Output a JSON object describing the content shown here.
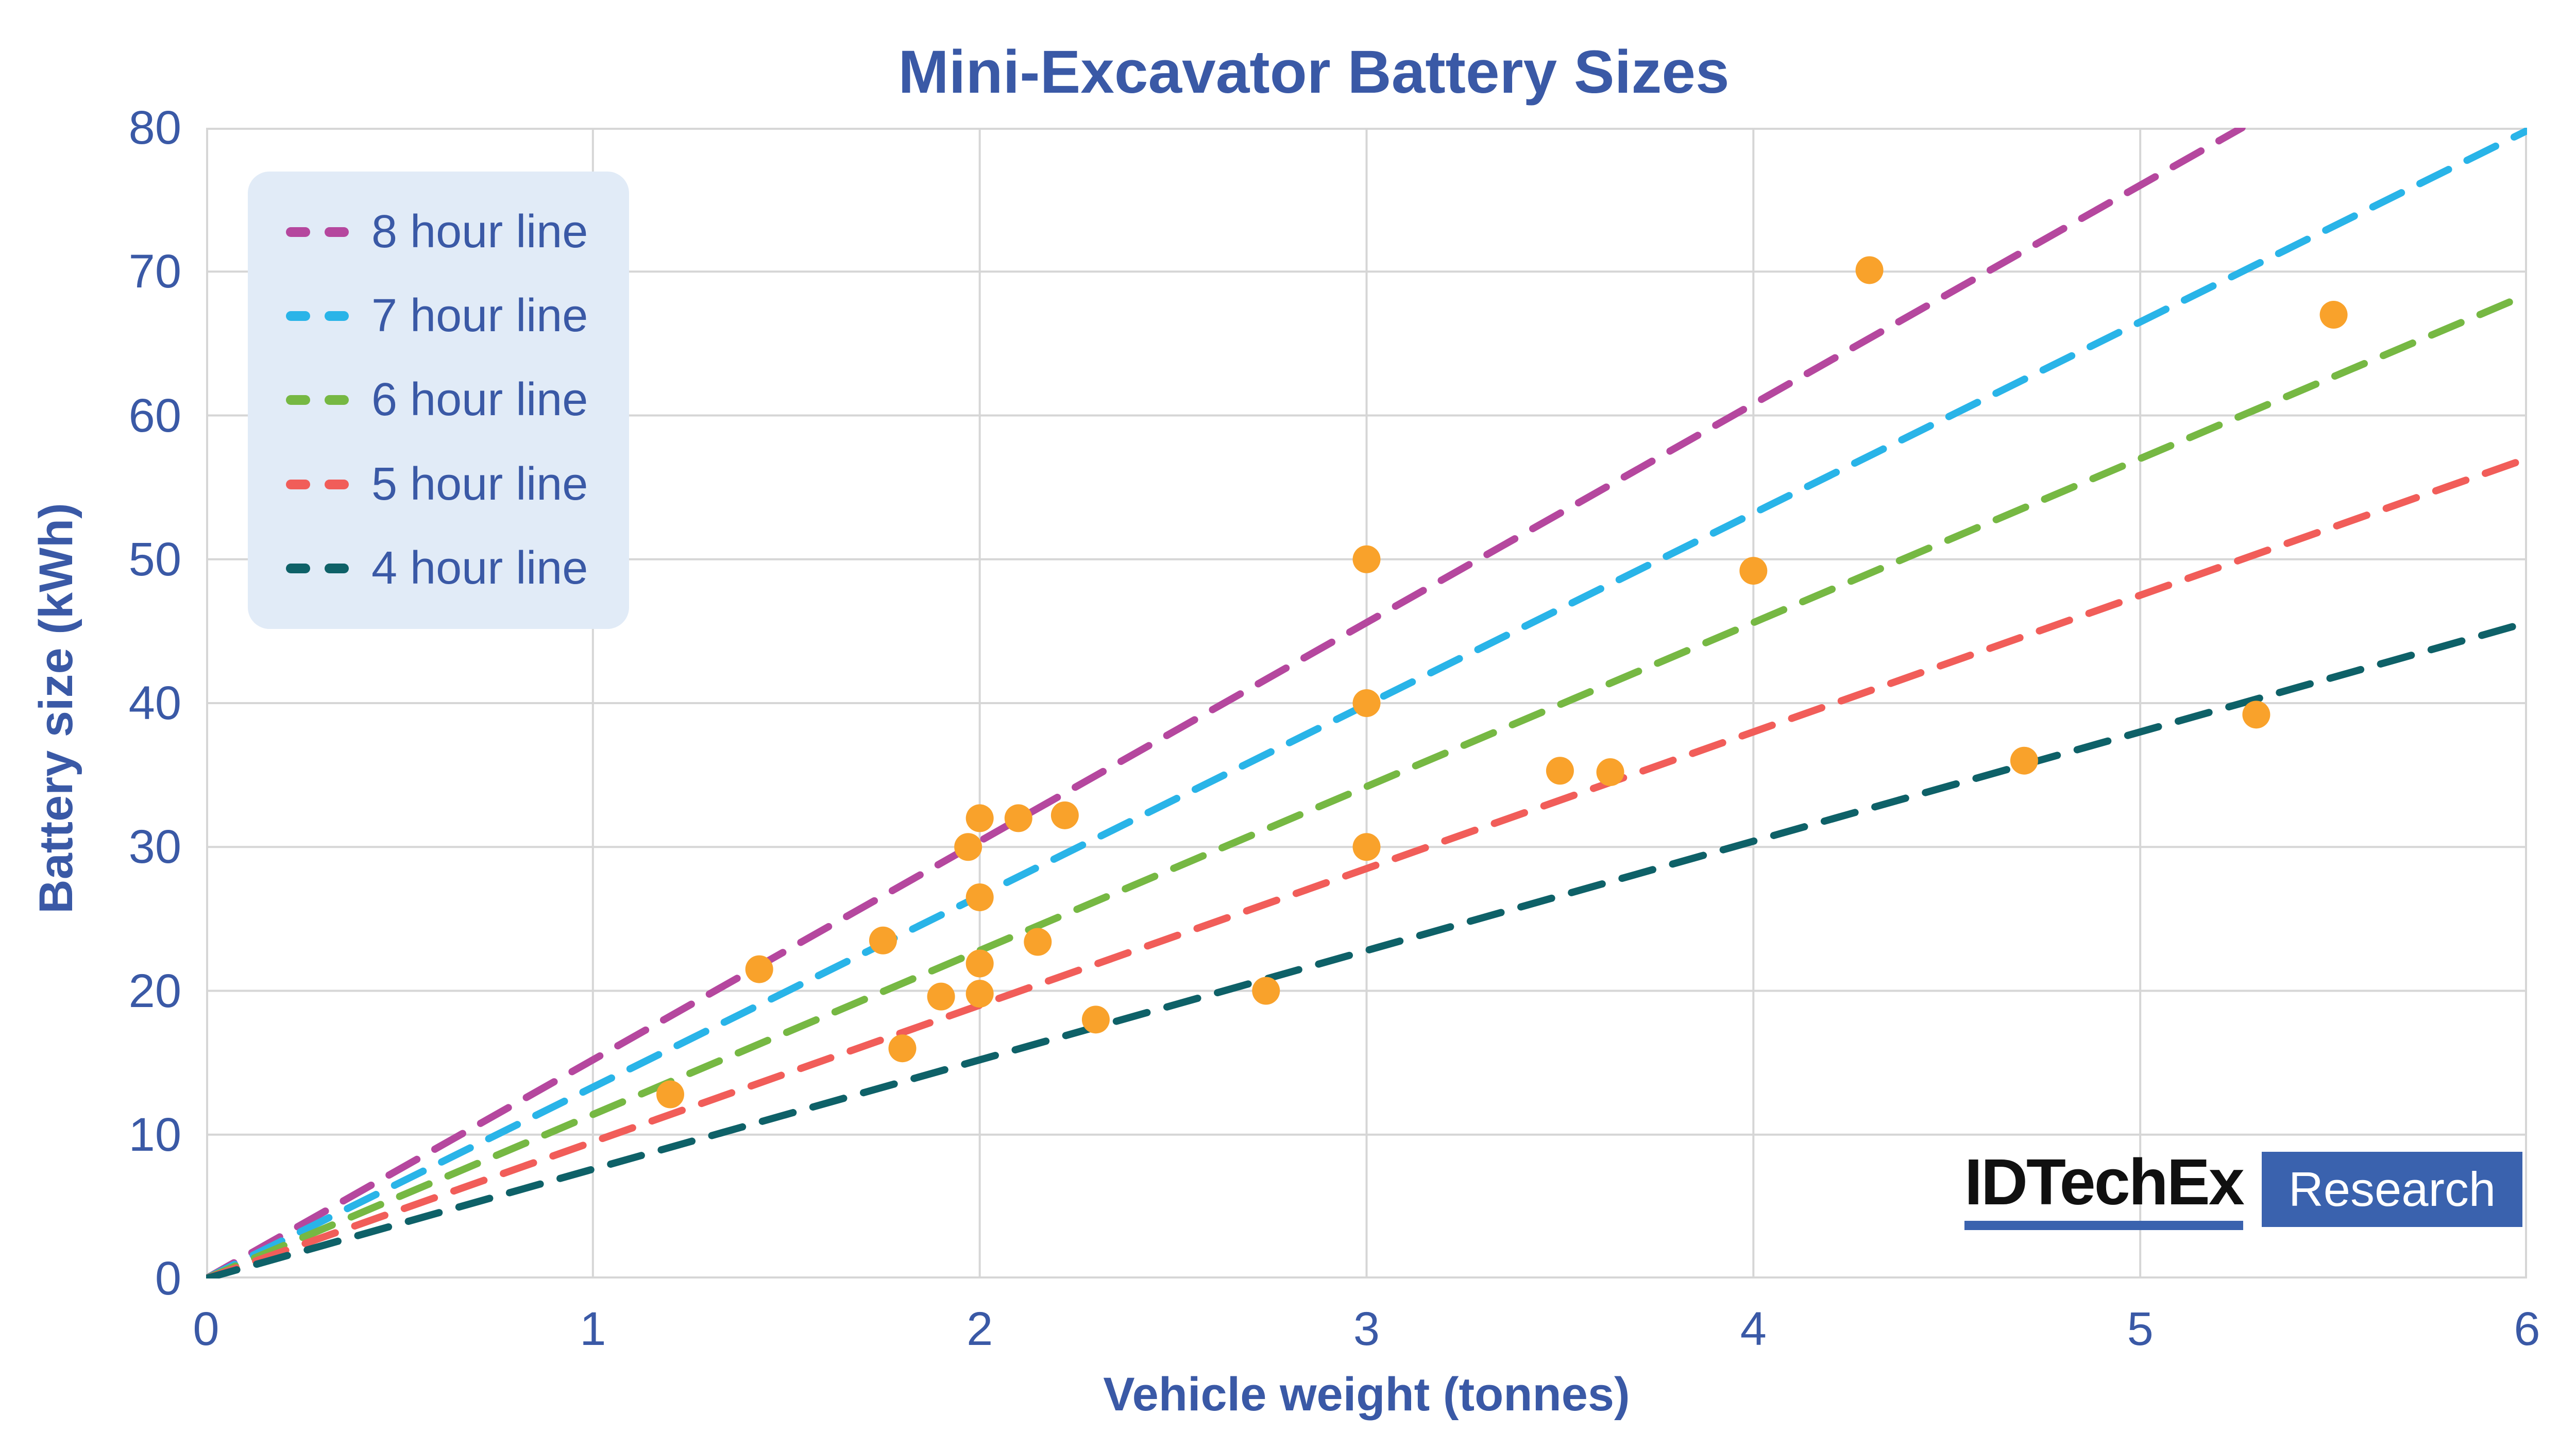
{
  "figure": {
    "background": "#ffffff",
    "text_color": "#3A59A6",
    "grid_color": "#D6D6D6",
    "title": "Mini-Excavator Battery Sizes"
  },
  "chart_data": {
    "type": "scatter",
    "title": "Mini-Excavator Battery Sizes",
    "xlabel": "Vehicle weight (tonnes)",
    "ylabel": "Battery size (kWh)",
    "xlim": [
      0,
      6
    ],
    "ylim": [
      0,
      80
    ],
    "x_ticks": [
      0,
      1,
      2,
      3,
      4,
      5,
      6
    ],
    "y_ticks": [
      0,
      10,
      20,
      30,
      40,
      50,
      60,
      70,
      80
    ],
    "grid": true,
    "legend_position": "upper-left",
    "points": {
      "name": "mini-excavator battery sizes",
      "color": "#F9A22B",
      "marker_radius_px": 27,
      "x": [
        1.2,
        1.43,
        1.75,
        1.8,
        1.9,
        1.97,
        2.0,
        2.0,
        2.0,
        2.0,
        2.1,
        2.15,
        2.22,
        2.3,
        2.74,
        3.0,
        3.0,
        3.0,
        3.5,
        3.63,
        4.0,
        4.3,
        4.7,
        5.3,
        5.5
      ],
      "y": [
        12.8,
        21.5,
        23.5,
        16.0,
        19.6,
        30.0,
        19.8,
        21.9,
        26.5,
        32.0,
        32.0,
        23.4,
        32.2,
        18.0,
        20.0,
        30.0,
        40.0,
        50.0,
        35.3,
        35.2,
        49.2,
        70.1,
        36.0,
        39.2,
        67.0
      ]
    },
    "reference_lines": [
      {
        "label": "8 hour line",
        "hours": 8,
        "slope_kwh_per_tonne": 15.2,
        "color": "#B5479E",
        "style": "dashed",
        "through_origin": true
      },
      {
        "label": "7 hour line",
        "hours": 7,
        "slope_kwh_per_tonne": 13.3,
        "color": "#29B4E8",
        "style": "dashed",
        "through_origin": true
      },
      {
        "label": "6 hour line",
        "hours": 6,
        "slope_kwh_per_tonne": 11.4,
        "color": "#76B843",
        "style": "dashed",
        "through_origin": true
      },
      {
        "label": "5 hour line",
        "hours": 5,
        "slope_kwh_per_tonne": 9.5,
        "color": "#F15D59",
        "style": "dashed",
        "through_origin": true
      },
      {
        "label": "4 hour line",
        "hours": 4,
        "slope_kwh_per_tonne": 7.6,
        "color": "#0E6168",
        "style": "dashed",
        "through_origin": true
      }
    ]
  },
  "axes": {
    "x_label": "Vehicle weight (tonnes)",
    "y_label": "Battery size (kWh)"
  },
  "legend": {
    "background": "#E1EBF7"
  },
  "logo": {
    "brand": "IDTechEx",
    "sub": "Research",
    "brand_color": "#101010",
    "accent_color": "#3A62AE"
  }
}
